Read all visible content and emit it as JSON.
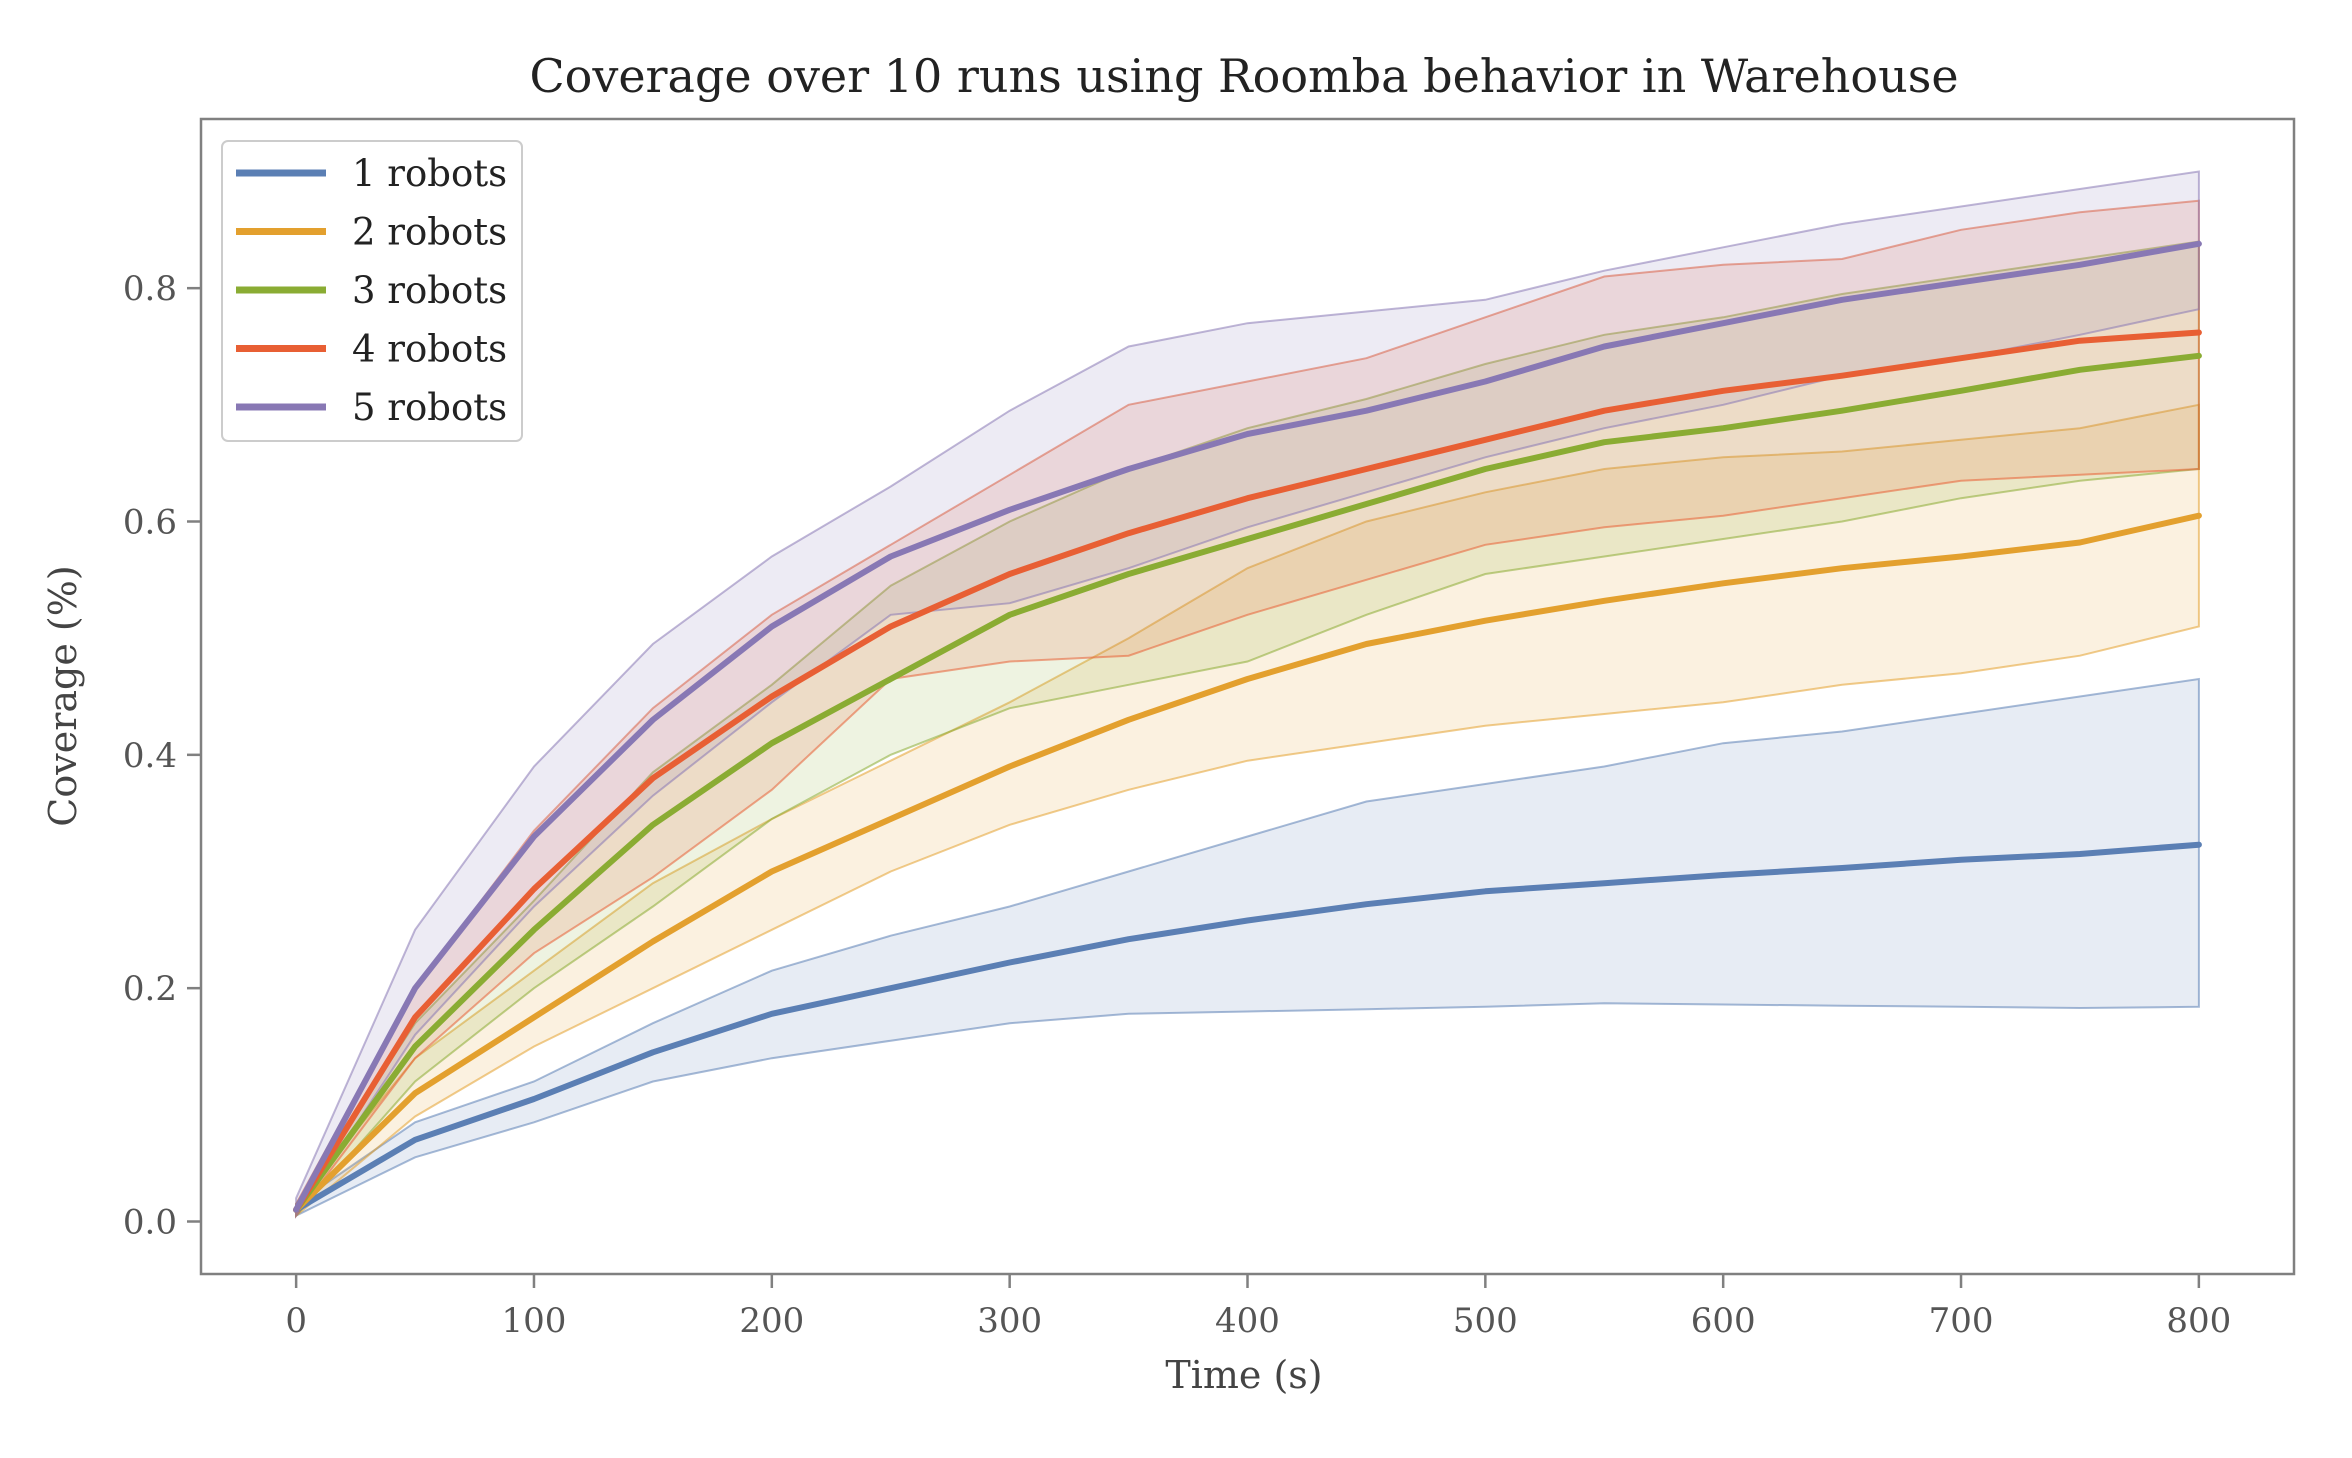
{
  "chart_data": {
    "type": "line",
    "title": "Coverage over 10 runs using Roomba behavior in Warehouse",
    "xlabel": "Time (s)",
    "ylabel": "Coverage (%)",
    "xlim": [
      -40,
      840
    ],
    "ylim": [
      -0.045,
      0.945
    ],
    "xticks": [
      0,
      100,
      200,
      300,
      400,
      500,
      600,
      700,
      800
    ],
    "xtick_labels": [
      "0",
      "100",
      "200",
      "300",
      "400",
      "500",
      "600",
      "700",
      "800"
    ],
    "yticks": [
      0.0,
      0.2,
      0.4,
      0.6,
      0.8
    ],
    "ytick_labels": [
      "0.0",
      "0.2",
      "0.4",
      "0.6",
      "0.8"
    ],
    "grid": false,
    "legend_position": "top-left",
    "x": [
      0,
      50,
      100,
      150,
      200,
      250,
      300,
      350,
      400,
      450,
      500,
      550,
      600,
      650,
      700,
      750,
      800
    ],
    "series": [
      {
        "name": "1 robots",
        "color": "#5b7fb4",
        "mean": [
          0.01,
          0.07,
          0.105,
          0.145,
          0.178,
          0.2,
          0.222,
          0.242,
          0.258,
          0.272,
          0.283,
          0.29,
          0.297,
          0.303,
          0.31,
          0.315,
          0.323
        ],
        "lower": [
          0.005,
          0.055,
          0.085,
          0.12,
          0.14,
          0.155,
          0.17,
          0.178,
          0.18,
          0.182,
          0.184,
          0.187,
          0.186,
          0.185,
          0.184,
          0.183,
          0.184
        ],
        "upper": [
          0.015,
          0.085,
          0.12,
          0.17,
          0.215,
          0.245,
          0.27,
          0.3,
          0.33,
          0.36,
          0.375,
          0.39,
          0.41,
          0.42,
          0.435,
          0.45,
          0.465
        ]
      },
      {
        "name": "2 robots",
        "color": "#e3a02e",
        "mean": [
          0.01,
          0.11,
          0.175,
          0.24,
          0.3,
          0.345,
          0.39,
          0.43,
          0.465,
          0.495,
          0.515,
          0.532,
          0.547,
          0.56,
          0.57,
          0.582,
          0.605
        ],
        "lower": [
          0.005,
          0.09,
          0.15,
          0.2,
          0.25,
          0.3,
          0.34,
          0.37,
          0.395,
          0.41,
          0.425,
          0.435,
          0.445,
          0.46,
          0.47,
          0.485,
          0.51
        ],
        "upper": [
          0.015,
          0.14,
          0.215,
          0.29,
          0.345,
          0.395,
          0.445,
          0.5,
          0.56,
          0.6,
          0.625,
          0.645,
          0.655,
          0.66,
          0.67,
          0.68,
          0.7
        ]
      },
      {
        "name": "3 robots",
        "color": "#8aac33",
        "mean": [
          0.01,
          0.15,
          0.25,
          0.34,
          0.41,
          0.465,
          0.52,
          0.555,
          0.585,
          0.615,
          0.645,
          0.668,
          0.68,
          0.695,
          0.712,
          0.73,
          0.742
        ],
        "lower": [
          0.005,
          0.12,
          0.2,
          0.27,
          0.345,
          0.4,
          0.44,
          0.46,
          0.48,
          0.52,
          0.555,
          0.57,
          0.585,
          0.6,
          0.62,
          0.635,
          0.645
        ],
        "upper": [
          0.015,
          0.17,
          0.275,
          0.385,
          0.46,
          0.545,
          0.6,
          0.645,
          0.68,
          0.705,
          0.735,
          0.76,
          0.775,
          0.795,
          0.81,
          0.825,
          0.84
        ]
      },
      {
        "name": "4 robots",
        "color": "#e85f34",
        "mean": [
          0.01,
          0.175,
          0.285,
          0.38,
          0.45,
          0.51,
          0.555,
          0.59,
          0.62,
          0.645,
          0.67,
          0.695,
          0.712,
          0.725,
          0.74,
          0.755,
          0.762
        ],
        "lower": [
          0.005,
          0.14,
          0.23,
          0.295,
          0.37,
          0.465,
          0.48,
          0.485,
          0.52,
          0.55,
          0.58,
          0.595,
          0.605,
          0.62,
          0.635,
          0.64,
          0.645
        ],
        "upper": [
          0.015,
          0.2,
          0.335,
          0.44,
          0.52,
          0.58,
          0.64,
          0.7,
          0.72,
          0.74,
          0.775,
          0.81,
          0.82,
          0.825,
          0.85,
          0.865,
          0.875
        ]
      },
      {
        "name": "5 robots",
        "color": "#8878b4",
        "mean": [
          0.01,
          0.2,
          0.33,
          0.43,
          0.51,
          0.57,
          0.61,
          0.645,
          0.675,
          0.695,
          0.72,
          0.75,
          0.77,
          0.79,
          0.805,
          0.82,
          0.838
        ],
        "lower": [
          0.005,
          0.16,
          0.27,
          0.365,
          0.445,
          0.52,
          0.53,
          0.56,
          0.595,
          0.625,
          0.655,
          0.68,
          0.7,
          0.725,
          0.74,
          0.76,
          0.782
        ],
        "upper": [
          0.02,
          0.25,
          0.39,
          0.495,
          0.57,
          0.63,
          0.695,
          0.75,
          0.77,
          0.78,
          0.79,
          0.815,
          0.835,
          0.855,
          0.87,
          0.885,
          0.9
        ]
      }
    ]
  }
}
